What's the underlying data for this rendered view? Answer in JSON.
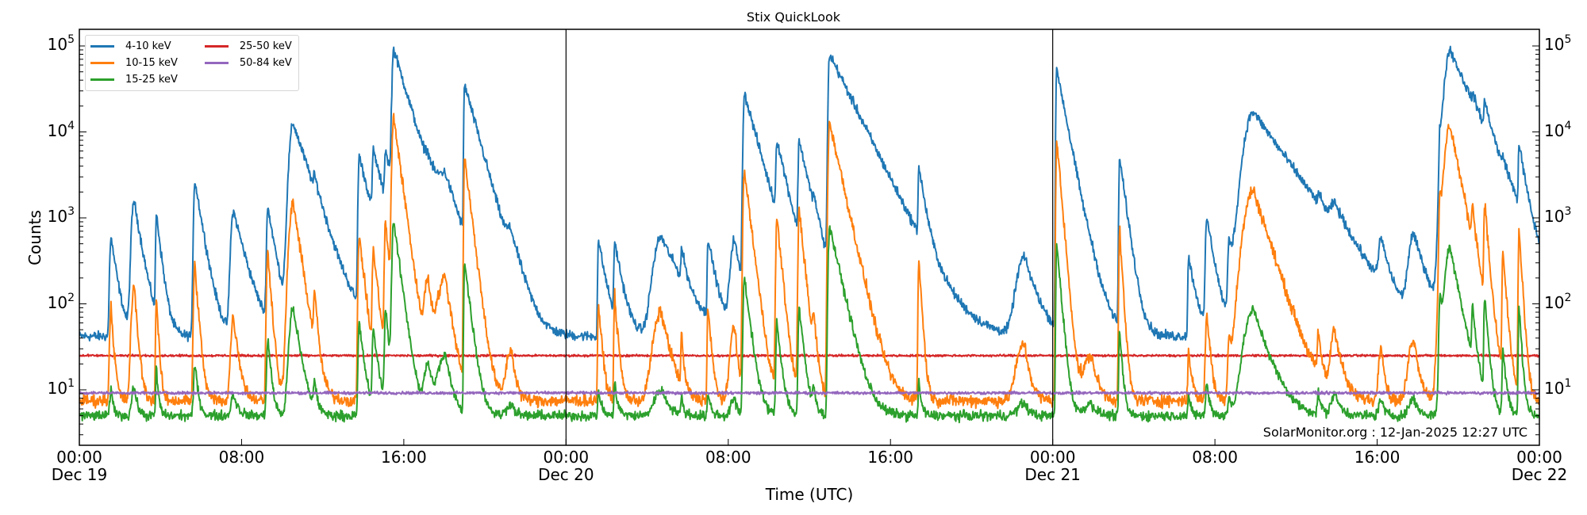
{
  "figure": {
    "title": "Stix QuickLook",
    "xlabel": "Time (UTC)",
    "ylabel": "Counts",
    "watermark": "SolarMonitor.org : 12-Jan-2025 12:27 UTC"
  },
  "legend": [
    {
      "label": "4-10 keV",
      "color": "#1f77b4"
    },
    {
      "label": "25-50 keV",
      "color": "#d62728"
    },
    {
      "label": "10-15 keV",
      "color": "#ff7f0e"
    },
    {
      "label": "50-84 keV",
      "color": "#9467bd"
    },
    {
      "label": "15-25 keV",
      "color": "#2ca02c"
    }
  ],
  "chart_data": {
    "type": "line",
    "title": "Stix QuickLook",
    "xlabel": "Time (UTC)",
    "ylabel": "Counts",
    "yscale": "log",
    "ylim": [
      2.2,
      160000
    ],
    "xlim_hours": [
      0,
      72
    ],
    "x_reference": "Dec 19 00:00 UTC",
    "grid": false,
    "legend_position": "upper left",
    "day_dividers_hours": [
      24,
      48
    ],
    "x_ticks": [
      {
        "hour": 0,
        "label": "00:00",
        "sublabel": "Dec 19"
      },
      {
        "hour": 8,
        "label": "08:00",
        "sublabel": ""
      },
      {
        "hour": 16,
        "label": "16:00",
        "sublabel": ""
      },
      {
        "hour": 24,
        "label": "00:00",
        "sublabel": "Dec 20"
      },
      {
        "hour": 32,
        "label": "08:00",
        "sublabel": ""
      },
      {
        "hour": 40,
        "label": "16:00",
        "sublabel": ""
      },
      {
        "hour": 48,
        "label": "00:00",
        "sublabel": "Dec 21"
      },
      {
        "hour": 56,
        "label": "08:00",
        "sublabel": ""
      },
      {
        "hour": 64,
        "label": "16:00",
        "sublabel": ""
      },
      {
        "hour": 72,
        "label": "00:00",
        "sublabel": "Dec 22"
      }
    ],
    "y_ticks": [
      {
        "value": 10,
        "base": "10",
        "exp": "1"
      },
      {
        "value": 100,
        "base": "10",
        "exp": "2"
      },
      {
        "value": 1000,
        "base": "10",
        "exp": "3"
      },
      {
        "value": 10000,
        "base": "10",
        "exp": "4"
      },
      {
        "value": 100000,
        "base": "10",
        "exp": "5"
      }
    ],
    "series": [
      {
        "name": "4-10 keV",
        "color": "#1f77b4",
        "baseline": 42,
        "noise": 0.07
      },
      {
        "name": "10-15 keV",
        "color": "#ff7f0e",
        "baseline": 7.5,
        "noise": 0.09
      },
      {
        "name": "15-25 keV",
        "color": "#2ca02c",
        "baseline": 5.0,
        "noise": 0.07
      },
      {
        "name": "25-50 keV",
        "color": "#d62728",
        "baseline": 25,
        "noise": 0.015
      },
      {
        "name": "50-84 keV",
        "color": "#9467bd",
        "baseline": 9.2,
        "noise": 0.02
      }
    ],
    "flares": [
      {
        "t": 1.56,
        "peak_4_10": 600,
        "peak_10_15": 95,
        "peak_15_25": 10,
        "rise": 0.05,
        "decay": 0.25
      },
      {
        "t": 2.7,
        "peak_4_10": 1600,
        "peak_10_15": 160,
        "peak_15_25": 11,
        "rise": 0.1,
        "decay": 0.3
      },
      {
        "t": 3.8,
        "peak_4_10": 1100,
        "peak_10_15": 120,
        "peak_15_25": 18,
        "rise": 0.03,
        "decay": 0.2
      },
      {
        "t": 5.7,
        "peak_4_10": 2700,
        "peak_10_15": 280,
        "peak_15_25": 20,
        "rise": 0.05,
        "decay": 0.3
      },
      {
        "t": 7.6,
        "peak_4_10": 1200,
        "peak_10_15": 70,
        "peak_15_25": 9,
        "rise": 0.1,
        "decay": 0.45
      },
      {
        "t": 9.3,
        "peak_4_10": 1300,
        "peak_10_15": 400,
        "peak_15_25": 40,
        "rise": 0.05,
        "decay": 0.3
      },
      {
        "t": 10.55,
        "peak_4_10": 12500,
        "peak_10_15": 1500,
        "peak_15_25": 90,
        "rise": 0.15,
        "decay": 0.6
      },
      {
        "t": 11.6,
        "peak_4_10": 1000,
        "peak_10_15": 120,
        "peak_15_25": 12,
        "rise": 0.04,
        "decay": 0.25
      },
      {
        "t": 13.8,
        "peak_4_10": 5200,
        "peak_10_15": 650,
        "peak_15_25": 60,
        "rise": 0.04,
        "decay": 0.45
      },
      {
        "t": 14.5,
        "peak_4_10": 5000,
        "peak_10_15": 400,
        "peak_15_25": 50,
        "rise": 0.04,
        "decay": 0.45
      },
      {
        "t": 15.1,
        "peak_4_10": 4700,
        "peak_10_15": 900,
        "peak_15_25": 90,
        "rise": 0.04,
        "decay": 0.35
      },
      {
        "t": 15.5,
        "peak_4_10": 90000,
        "peak_10_15": 15000,
        "peak_15_25": 900,
        "rise": 0.06,
        "decay": 0.55
      },
      {
        "t": 17.2,
        "peak_4_10": 1600,
        "peak_10_15": 180,
        "peak_15_25": 20,
        "rise": 0.15,
        "decay": 0.45
      },
      {
        "t": 18.05,
        "peak_4_10": 2200,
        "peak_10_15": 200,
        "peak_15_25": 25,
        "rise": 0.3,
        "decay": 0.6
      },
      {
        "t": 19.0,
        "peak_4_10": 35000,
        "peak_10_15": 5000,
        "peak_15_25": 300,
        "rise": 0.03,
        "decay": 0.5
      },
      {
        "t": 21.3,
        "peak_4_10": 360,
        "peak_10_15": 30,
        "peak_15_25": 7,
        "rise": 0.2,
        "decay": 0.4
      },
      {
        "t": 25.6,
        "peak_4_10": 550,
        "peak_10_15": 100,
        "peak_15_25": 10,
        "rise": 0.03,
        "decay": 0.3
      },
      {
        "t": 26.4,
        "peak_4_10": 500,
        "peak_10_15": 120,
        "peak_15_25": 12,
        "rise": 0.03,
        "decay": 0.3
      },
      {
        "t": 28.7,
        "peak_4_10": 600,
        "peak_10_15": 80,
        "peak_15_25": 10,
        "rise": 0.3,
        "decay": 0.8
      },
      {
        "t": 29.7,
        "peak_4_10": 300,
        "peak_10_15": 40,
        "peak_15_25": 8,
        "rise": 0.03,
        "decay": 0.2
      },
      {
        "t": 31.0,
        "peak_4_10": 550,
        "peak_10_15": 90,
        "peak_15_25": 9,
        "rise": 0.03,
        "decay": 0.3
      },
      {
        "t": 32.3,
        "peak_4_10": 550,
        "peak_10_15": 60,
        "peak_15_25": 8,
        "rise": 0.15,
        "decay": 0.3
      },
      {
        "t": 32.8,
        "peak_4_10": 28000,
        "peak_10_15": 3500,
        "peak_15_25": 200,
        "rise": 0.05,
        "decay": 0.5
      },
      {
        "t": 34.4,
        "peak_4_10": 7000,
        "peak_10_15": 1000,
        "peak_15_25": 60,
        "rise": 0.04,
        "decay": 0.4
      },
      {
        "t": 35.5,
        "peak_4_10": 7500,
        "peak_10_15": 1300,
        "peak_15_25": 90,
        "rise": 0.04,
        "decay": 0.4
      },
      {
        "t": 36.2,
        "peak_4_10": 550,
        "peak_10_15": 60,
        "peak_15_25": 10,
        "rise": 0.04,
        "decay": 0.3
      },
      {
        "t": 37.0,
        "peak_4_10": 80000,
        "peak_10_15": 13000,
        "peak_15_25": 800,
        "rise": 0.05,
        "decay": 0.9
      },
      {
        "t": 41.4,
        "peak_4_10": 3400,
        "peak_10_15": 330,
        "peak_15_25": 12,
        "rise": 0.03,
        "decay": 0.25
      },
      {
        "t": 46.6,
        "peak_4_10": 350,
        "peak_10_15": 35,
        "peak_15_25": 7,
        "rise": 0.3,
        "decay": 0.5
      },
      {
        "t": 48.2,
        "peak_4_10": 55000,
        "peak_10_15": 8000,
        "peak_15_25": 500,
        "rise": 0.03,
        "decay": 0.35
      },
      {
        "t": 49.9,
        "peak_4_10": 120,
        "peak_10_15": 25,
        "peak_15_25": 7,
        "rise": 0.3,
        "decay": 0.6
      },
      {
        "t": 51.3,
        "peak_4_10": 5000,
        "peak_10_15": 700,
        "peak_15_25": 50,
        "rise": 0.03,
        "decay": 0.25
      },
      {
        "t": 54.7,
        "peak_4_10": 350,
        "peak_10_15": 30,
        "peak_15_25": 8,
        "rise": 0.03,
        "decay": 0.3
      },
      {
        "t": 55.6,
        "peak_4_10": 1000,
        "peak_10_15": 80,
        "peak_15_25": 12,
        "rise": 0.05,
        "decay": 0.3
      },
      {
        "t": 56.7,
        "peak_4_10": 500,
        "peak_10_15": 40,
        "peak_15_25": 8,
        "rise": 0.05,
        "decay": 0.3
      },
      {
        "t": 57.9,
        "peak_4_10": 17000,
        "peak_10_15": 2100,
        "peak_15_25": 85,
        "rise": 0.35,
        "decay": 1.3
      },
      {
        "t": 61.1,
        "peak_4_10": 500,
        "peak_10_15": 40,
        "peak_15_25": 9,
        "rise": 0.04,
        "decay": 0.3
      },
      {
        "t": 61.9,
        "peak_4_10": 700,
        "peak_10_15": 50,
        "peak_15_25": 9,
        "rise": 0.15,
        "decay": 0.6
      },
      {
        "t": 64.2,
        "peak_4_10": 450,
        "peak_10_15": 35,
        "peak_15_25": 8,
        "rise": 0.1,
        "decay": 0.3
      },
      {
        "t": 65.8,
        "peak_4_10": 600,
        "peak_10_15": 40,
        "peak_15_25": 8,
        "rise": 0.2,
        "decay": 0.5
      },
      {
        "t": 67.1,
        "peak_4_10": 8500,
        "peak_10_15": 1500,
        "peak_15_25": 120,
        "rise": 0.04,
        "decay": 0.2
      },
      {
        "t": 67.6,
        "peak_4_10": 90000,
        "peak_10_15": 12000,
        "peak_15_25": 450,
        "rise": 0.2,
        "decay": 0.8
      },
      {
        "t": 68.7,
        "peak_4_10": 5500,
        "peak_10_15": 1000,
        "peak_15_25": 80,
        "rise": 0.03,
        "decay": 0.3
      },
      {
        "t": 69.3,
        "peak_4_10": 12000,
        "peak_10_15": 1500,
        "peak_15_25": 120,
        "rise": 0.03,
        "decay": 0.3
      },
      {
        "t": 70.2,
        "peak_4_10": 1200,
        "peak_10_15": 400,
        "peak_15_25": 30,
        "rise": 0.03,
        "decay": 0.3
      },
      {
        "t": 71.0,
        "peak_4_10": 6000,
        "peak_10_15": 700,
        "peak_15_25": 90,
        "rise": 0.03,
        "decay": 0.25
      }
    ]
  }
}
